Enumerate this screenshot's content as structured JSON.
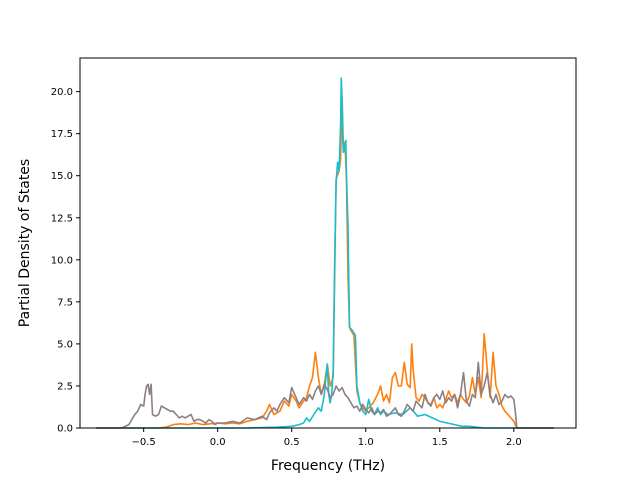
{
  "chart_data": {
    "type": "line",
    "title": "",
    "xlabel": "Frequency (THz)",
    "ylabel": "Partial Density of States",
    "xlim": [
      -0.93,
      2.42
    ],
    "ylim": [
      0,
      22
    ],
    "xticks": [
      -0.5,
      0.0,
      0.5,
      1.0,
      1.5,
      2.0
    ],
    "xtick_labels": [
      "−0.5",
      "0.0",
      "0.5",
      "1.0",
      "1.5",
      "2.0"
    ],
    "yticks": [
      0.0,
      2.5,
      5.0,
      7.5,
      10.0,
      12.5,
      15.0,
      17.5,
      20.0
    ],
    "ytick_labels": [
      "0.0",
      "2.5",
      "5.0",
      "7.5",
      "10.0",
      "12.5",
      "15.0",
      "17.5",
      "20.0"
    ],
    "grid": false,
    "legend": "none",
    "series": [
      {
        "color": "#ff7f0e",
        "points": [
          [
            -0.82,
            0
          ],
          [
            -0.6,
            0
          ],
          [
            -0.56,
            0
          ],
          [
            -0.4,
            0
          ],
          [
            -0.35,
            0.05
          ],
          [
            -0.3,
            0.2
          ],
          [
            -0.25,
            0.25
          ],
          [
            -0.2,
            0.2
          ],
          [
            -0.15,
            0.3
          ],
          [
            -0.1,
            0.2
          ],
          [
            -0.05,
            0.25
          ],
          [
            0.0,
            0.3
          ],
          [
            0.05,
            0.25
          ],
          [
            0.1,
            0.3
          ],
          [
            0.15,
            0.25
          ],
          [
            0.2,
            0.4
          ],
          [
            0.25,
            0.5
          ],
          [
            0.3,
            0.6
          ],
          [
            0.33,
            1.0
          ],
          [
            0.35,
            1.4
          ],
          [
            0.38,
            0.8
          ],
          [
            0.42,
            1.0
          ],
          [
            0.45,
            1.6
          ],
          [
            0.48,
            1.3
          ],
          [
            0.5,
            2.0
          ],
          [
            0.53,
            1.6
          ],
          [
            0.55,
            1.2
          ],
          [
            0.58,
            1.6
          ],
          [
            0.6,
            1.8
          ],
          [
            0.62,
            2.5
          ],
          [
            0.64,
            3.0
          ],
          [
            0.66,
            4.5
          ],
          [
            0.68,
            3.0
          ],
          [
            0.7,
            2.0
          ],
          [
            0.72,
            2.6
          ],
          [
            0.74,
            3.8
          ],
          [
            0.76,
            2.5
          ],
          [
            0.78,
            3.0
          ],
          [
            0.8,
            14.8
          ],
          [
            0.82,
            15.3
          ],
          [
            0.83,
            16.0
          ],
          [
            0.84,
            19.7
          ],
          [
            0.85,
            16.4
          ],
          [
            0.86,
            17.0
          ],
          [
            0.87,
            14.6
          ],
          [
            0.88,
            9.0
          ],
          [
            0.89,
            6.0
          ],
          [
            0.9,
            5.8
          ],
          [
            0.92,
            5.5
          ],
          [
            0.94,
            2.2
          ],
          [
            0.96,
            1.5
          ],
          [
            0.98,
            1.2
          ],
          [
            1.0,
            1.0
          ],
          [
            1.02,
            1.2
          ],
          [
            1.05,
            1.5
          ],
          [
            1.08,
            2.0
          ],
          [
            1.1,
            2.5
          ],
          [
            1.12,
            1.6
          ],
          [
            1.14,
            2.0
          ],
          [
            1.16,
            1.5
          ],
          [
            1.18,
            3.0
          ],
          [
            1.2,
            3.3
          ],
          [
            1.22,
            2.5
          ],
          [
            1.24,
            2.5
          ],
          [
            1.26,
            3.9
          ],
          [
            1.28,
            2.6
          ],
          [
            1.3,
            2.4
          ],
          [
            1.31,
            5.0
          ],
          [
            1.32,
            3.5
          ],
          [
            1.34,
            1.8
          ],
          [
            1.36,
            1.6
          ],
          [
            1.38,
            2.0
          ],
          [
            1.4,
            1.8
          ],
          [
            1.42,
            1.5
          ],
          [
            1.44,
            1.4
          ],
          [
            1.46,
            1.8
          ],
          [
            1.48,
            1.2
          ],
          [
            1.5,
            1.4
          ],
          [
            1.52,
            1.2
          ],
          [
            1.54,
            1.7
          ],
          [
            1.56,
            2.2
          ],
          [
            1.58,
            1.8
          ],
          [
            1.6,
            2.0
          ],
          [
            1.62,
            1.5
          ],
          [
            1.64,
            2.0
          ],
          [
            1.66,
            1.7
          ],
          [
            1.68,
            1.5
          ],
          [
            1.7,
            1.9
          ],
          [
            1.72,
            3.0
          ],
          [
            1.74,
            2.0
          ],
          [
            1.76,
            3.0
          ],
          [
            1.78,
            1.8
          ],
          [
            1.8,
            5.6
          ],
          [
            1.82,
            3.5
          ],
          [
            1.84,
            1.8
          ],
          [
            1.86,
            4.5
          ],
          [
            1.88,
            2.5
          ],
          [
            1.9,
            2.0
          ],
          [
            1.92,
            1.3
          ],
          [
            1.94,
            1.0
          ],
          [
            1.96,
            0.8
          ],
          [
            1.98,
            0.6
          ],
          [
            2.0,
            0.4
          ],
          [
            2.02,
            0
          ],
          [
            2.1,
            0
          ],
          [
            2.27,
            0
          ]
        ]
      },
      {
        "color": "#17becf",
        "points": [
          [
            -0.82,
            0
          ],
          [
            -0.6,
            0
          ],
          [
            -0.4,
            0
          ],
          [
            -0.2,
            0
          ],
          [
            0.0,
            0
          ],
          [
            0.2,
            0
          ],
          [
            0.4,
            0.05
          ],
          [
            0.5,
            0.1
          ],
          [
            0.55,
            0.2
          ],
          [
            0.58,
            0.3
          ],
          [
            0.6,
            0.6
          ],
          [
            0.62,
            0.4
          ],
          [
            0.65,
            0.8
          ],
          [
            0.68,
            1.2
          ],
          [
            0.7,
            1.0
          ],
          [
            0.72,
            2.0
          ],
          [
            0.74,
            3.8
          ],
          [
            0.75,
            2.0
          ],
          [
            0.76,
            1.5
          ],
          [
            0.77,
            2.0
          ],
          [
            0.78,
            3.5
          ],
          [
            0.79,
            10.0
          ],
          [
            0.8,
            14.6
          ],
          [
            0.81,
            15.8
          ],
          [
            0.82,
            15.3
          ],
          [
            0.83,
            18.0
          ],
          [
            0.835,
            20.8
          ],
          [
            0.84,
            19.5
          ],
          [
            0.845,
            17.0
          ],
          [
            0.85,
            16.4
          ],
          [
            0.86,
            16.7
          ],
          [
            0.865,
            17.1
          ],
          [
            0.87,
            15.0
          ],
          [
            0.88,
            12.0
          ],
          [
            0.89,
            6.0
          ],
          [
            0.91,
            5.8
          ],
          [
            0.93,
            5.5
          ],
          [
            0.94,
            2.5
          ],
          [
            0.96,
            1.5
          ],
          [
            0.98,
            1.0
          ],
          [
            1.0,
            0.8
          ],
          [
            1.02,
            1.7
          ],
          [
            1.04,
            1.0
          ],
          [
            1.06,
            0.8
          ],
          [
            1.08,
            1.2
          ],
          [
            1.1,
            0.8
          ],
          [
            1.12,
            1.0
          ],
          [
            1.15,
            0.8
          ],
          [
            1.2,
            0.9
          ],
          [
            1.25,
            0.8
          ],
          [
            1.3,
            1.2
          ],
          [
            1.35,
            0.7
          ],
          [
            1.4,
            0.8
          ],
          [
            1.45,
            0.6
          ],
          [
            1.5,
            0.4
          ],
          [
            1.55,
            0.3
          ],
          [
            1.6,
            0.2
          ],
          [
            1.65,
            0.1
          ],
          [
            1.7,
            0.1
          ],
          [
            1.8,
            0
          ],
          [
            2.0,
            0
          ],
          [
            2.27,
            0
          ]
        ]
      },
      {
        "color": "#8c7f87",
        "points": [
          [
            -0.82,
            0
          ],
          [
            -0.65,
            0
          ],
          [
            -0.6,
            0.2
          ],
          [
            -0.58,
            0.5
          ],
          [
            -0.56,
            0.8
          ],
          [
            -0.54,
            1.0
          ],
          [
            -0.52,
            1.4
          ],
          [
            -0.5,
            1.3
          ],
          [
            -0.49,
            2.0
          ],
          [
            -0.48,
            2.5
          ],
          [
            -0.47,
            2.6
          ],
          [
            -0.46,
            2.0
          ],
          [
            -0.45,
            2.6
          ],
          [
            -0.44,
            0.8
          ],
          [
            -0.42,
            0.7
          ],
          [
            -0.4,
            0.8
          ],
          [
            -0.38,
            1.3
          ],
          [
            -0.36,
            1.2
          ],
          [
            -0.34,
            1.1
          ],
          [
            -0.32,
            1.0
          ],
          [
            -0.3,
            1.0
          ],
          [
            -0.28,
            0.8
          ],
          [
            -0.26,
            0.6
          ],
          [
            -0.24,
            0.7
          ],
          [
            -0.22,
            0.6
          ],
          [
            -0.2,
            0.7
          ],
          [
            -0.18,
            0.8
          ],
          [
            -0.16,
            0.4
          ],
          [
            -0.14,
            0.5
          ],
          [
            -0.12,
            0.5
          ],
          [
            -0.1,
            0.4
          ],
          [
            -0.08,
            0.3
          ],
          [
            -0.06,
            0.5
          ],
          [
            -0.04,
            0.4
          ],
          [
            -0.02,
            0.2
          ],
          [
            0.0,
            0.3
          ],
          [
            0.05,
            0.3
          ],
          [
            0.1,
            0.4
          ],
          [
            0.15,
            0.3
          ],
          [
            0.2,
            0.6
          ],
          [
            0.25,
            0.5
          ],
          [
            0.3,
            0.7
          ],
          [
            0.33,
            0.5
          ],
          [
            0.35,
            0.9
          ],
          [
            0.38,
            1.2
          ],
          [
            0.4,
            1.0
          ],
          [
            0.42,
            1.4
          ],
          [
            0.45,
            1.8
          ],
          [
            0.48,
            1.5
          ],
          [
            0.5,
            2.4
          ],
          [
            0.52,
            2.0
          ],
          [
            0.55,
            1.4
          ],
          [
            0.58,
            1.8
          ],
          [
            0.6,
            1.6
          ],
          [
            0.62,
            2.0
          ],
          [
            0.64,
            1.7
          ],
          [
            0.66,
            2.2
          ],
          [
            0.68,
            2.5
          ],
          [
            0.7,
            2.0
          ],
          [
            0.72,
            2.6
          ],
          [
            0.74,
            2.3
          ],
          [
            0.76,
            1.8
          ],
          [
            0.78,
            2.0
          ],
          [
            0.8,
            2.5
          ],
          [
            0.82,
            2.2
          ],
          [
            0.84,
            2.4
          ],
          [
            0.86,
            2.0
          ],
          [
            0.88,
            1.8
          ],
          [
            0.9,
            1.5
          ],
          [
            0.92,
            1.2
          ],
          [
            0.94,
            1.3
          ],
          [
            0.96,
            1.0
          ],
          [
            0.98,
            1.4
          ],
          [
            1.0,
            1.1
          ],
          [
            1.02,
            0.9
          ],
          [
            1.04,
            1.2
          ],
          [
            1.06,
            0.8
          ],
          [
            1.08,
            1.0
          ],
          [
            1.1,
            0.9
          ],
          [
            1.12,
            1.1
          ],
          [
            1.14,
            0.7
          ],
          [
            1.16,
            0.8
          ],
          [
            1.18,
            1.0
          ],
          [
            1.2,
            1.2
          ],
          [
            1.22,
            0.8
          ],
          [
            1.24,
            0.7
          ],
          [
            1.26,
            1.0
          ],
          [
            1.28,
            1.4
          ],
          [
            1.3,
            1.2
          ],
          [
            1.32,
            1.0
          ],
          [
            1.34,
            1.6
          ],
          [
            1.36,
            1.4
          ],
          [
            1.38,
            1.2
          ],
          [
            1.4,
            2.0
          ],
          [
            1.42,
            1.5
          ],
          [
            1.44,
            1.3
          ],
          [
            1.46,
            1.8
          ],
          [
            1.48,
            2.0
          ],
          [
            1.5,
            1.7
          ],
          [
            1.52,
            2.2
          ],
          [
            1.54,
            1.5
          ],
          [
            1.56,
            1.8
          ],
          [
            1.58,
            1.6
          ],
          [
            1.6,
            2.0
          ],
          [
            1.62,
            1.2
          ],
          [
            1.64,
            2.0
          ],
          [
            1.66,
            3.3
          ],
          [
            1.68,
            1.6
          ],
          [
            1.7,
            1.3
          ],
          [
            1.72,
            2.0
          ],
          [
            1.74,
            1.8
          ],
          [
            1.76,
            3.9
          ],
          [
            1.78,
            2.0
          ],
          [
            1.8,
            2.5
          ],
          [
            1.82,
            3.3
          ],
          [
            1.84,
            2.0
          ],
          [
            1.86,
            1.5
          ],
          [
            1.88,
            2.0
          ],
          [
            1.9,
            1.4
          ],
          [
            1.92,
            1.6
          ],
          [
            1.94,
            2.0
          ],
          [
            1.96,
            1.8
          ],
          [
            1.98,
            1.9
          ],
          [
            2.0,
            1.7
          ],
          [
            2.01,
            1.0
          ],
          [
            2.02,
            0
          ],
          [
            2.1,
            0
          ],
          [
            2.27,
            0
          ]
        ]
      }
    ]
  }
}
